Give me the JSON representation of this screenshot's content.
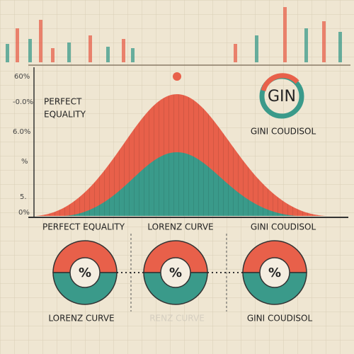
{
  "axis_labels": [
    "60%",
    "-0.0%",
    "6.0%",
    "%",
    "5.",
    "0%"
  ],
  "left_label_lines": [
    "PERFECT",
    "EQUALITY"
  ],
  "logo": "GIN",
  "right_label": "GINI COUDISOL",
  "axis_captions": [
    "PERFECT EQUALITY",
    "LORENZ CURVE",
    "GINI COUDISOL"
  ],
  "circles": [
    {
      "symbol": "%"
    },
    {
      "symbol": "%"
    },
    {
      "symbol": "%"
    }
  ],
  "bottom_labels": [
    "LORENZ CURVE",
    "RENZ CURVE",
    "GINI COUDISOL"
  ]
}
